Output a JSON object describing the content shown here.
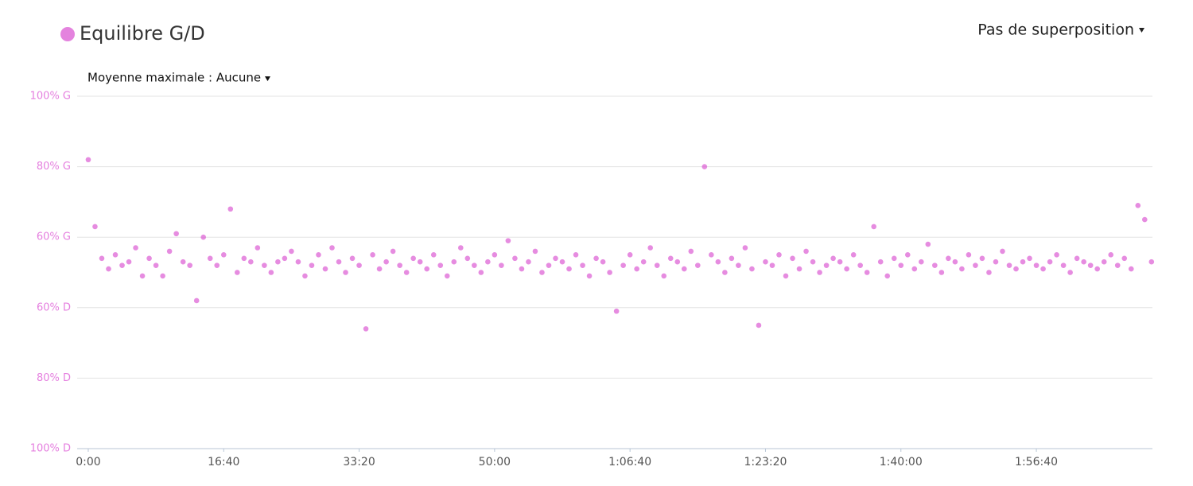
{
  "controls": {
    "overlay": "Pas de superposition",
    "max_average": "Moyenne maximale : Aucune"
  },
  "chart_data": {
    "type": "scatter",
    "title": "Equilibre G/D",
    "grid": true,
    "x": [
      0,
      50,
      100,
      150,
      200,
      250,
      300,
      350,
      400,
      450,
      500,
      550,
      600,
      650,
      700,
      750,
      800,
      850,
      900,
      950,
      1000,
      1050,
      1100,
      1150,
      1200,
      1250,
      1300,
      1350,
      1400,
      1450,
      1500,
      1550,
      1600,
      1650,
      1700,
      1750,
      1800,
      1850,
      1900,
      1950,
      2000,
      2050,
      2100,
      2150,
      2200,
      2250,
      2300,
      2350,
      2400,
      2450,
      2500,
      2550,
      2600,
      2650,
      2700,
      2750,
      2800,
      2850,
      2900,
      2950,
      3000,
      3050,
      3100,
      3150,
      3200,
      3250,
      3300,
      3350,
      3400,
      3450,
      3500,
      3550,
      3600,
      3650,
      3700,
      3750,
      3800,
      3850,
      3900,
      3950,
      4000,
      4050,
      4100,
      4150,
      4200,
      4250,
      4300,
      4350,
      4400,
      4450,
      4500,
      4550,
      4600,
      4650,
      4700,
      4750,
      4800,
      4850,
      4900,
      4950,
      5000,
      5050,
      5100,
      5150,
      5200,
      5250,
      5300,
      5350,
      5400,
      5450,
      5500,
      5550,
      5600,
      5650,
      5700,
      5750,
      5800,
      5850,
      5900,
      5950,
      6000,
      6050,
      6100,
      6150,
      6200,
      6250,
      6300,
      6350,
      6400,
      6450,
      6500,
      6550,
      6600,
      6650,
      6700,
      6750,
      6800,
      6850,
      6900,
      6950,
      7000,
      7050,
      7100,
      7150,
      7200,
      7250,
      7300,
      7350,
      7400,
      7450,
      7500,
      7550,
      7600,
      7650,
      7700,
      7750,
      7800,
      7850
    ],
    "series": [
      {
        "name": "Equilibre G/D",
        "color": "#d94fd0",
        "values": [
          82,
          63,
          54,
          51,
          55,
          52,
          53,
          57,
          49,
          54,
          52,
          49,
          56,
          61,
          53,
          52,
          42,
          60,
          54,
          52,
          55,
          68,
          50,
          54,
          53,
          57,
          52,
          50,
          53,
          54,
          56,
          53,
          49,
          52,
          55,
          51,
          57,
          53,
          50,
          54,
          52,
          34,
          55,
          51,
          53,
          56,
          52,
          50,
          54,
          53,
          51,
          55,
          52,
          49,
          53,
          57,
          54,
          52,
          50,
          53,
          55,
          52,
          59,
          54,
          51,
          53,
          56,
          50,
          52,
          54,
          53,
          51,
          55,
          52,
          49,
          54,
          53,
          50,
          39,
          52,
          55,
          51,
          53,
          57,
          52,
          49,
          54,
          53,
          51,
          56,
          52,
          80,
          55,
          53,
          50,
          54,
          52,
          57,
          51,
          35,
          53,
          52,
          55,
          49,
          54,
          51,
          56,
          53,
          50,
          52,
          54,
          53,
          51,
          55,
          52,
          50,
          63,
          53,
          49,
          54,
          52,
          55,
          51,
          53,
          58,
          52,
          50,
          54,
          53,
          51,
          55,
          52,
          54,
          50,
          53,
          56,
          52,
          51,
          53,
          54,
          52,
          51,
          53,
          55,
          52,
          50,
          54,
          53,
          52,
          51,
          53,
          55,
          52,
          54,
          51,
          69,
          65,
          53
        ]
      }
    ],
    "xlim": [
      -82,
      7857
    ],
    "xticks": [
      {
        "value": 0,
        "label": "0:00"
      },
      {
        "value": 1000,
        "label": "16:40"
      },
      {
        "value": 2000,
        "label": "33:20"
      },
      {
        "value": 3000,
        "label": "50:00"
      },
      {
        "value": 4000,
        "label": "1:06:40"
      },
      {
        "value": 5000,
        "label": "1:23:20"
      },
      {
        "value": 6000,
        "label": "1:40:00"
      },
      {
        "value": 7000,
        "label": "1:56:40"
      }
    ],
    "ylim": [
      0,
      100
    ],
    "yticks": [
      {
        "value": 100,
        "label": "100% G"
      },
      {
        "value": 80,
        "label": "80% G"
      },
      {
        "value": 60,
        "label": "60% G"
      },
      {
        "value": 40,
        "label": "60% D"
      },
      {
        "value": 20,
        "label": "80% D"
      },
      {
        "value": 0,
        "label": "100% D"
      }
    ]
  }
}
